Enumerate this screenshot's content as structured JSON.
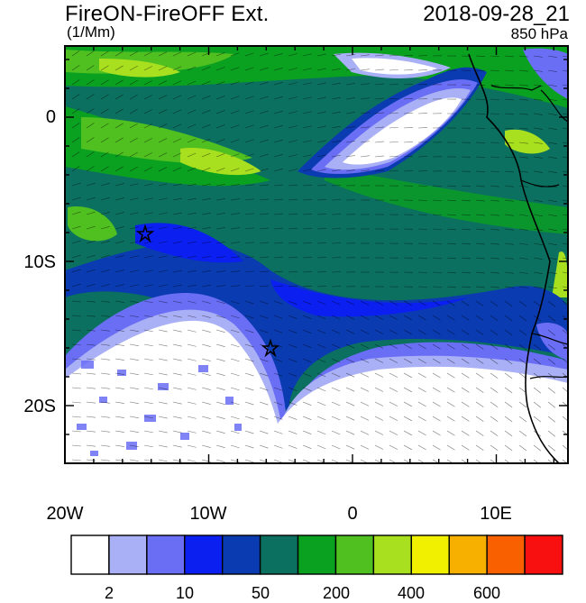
{
  "title": "FireON-FireOFF Ext.",
  "datetime": "2018-09-28_21",
  "units": "(1/Mm)",
  "level": "850 hPa",
  "y_axis_labels": [
    "0",
    "10S",
    "20S"
  ],
  "x_axis_labels": [
    "20W",
    "10W",
    "0",
    "10E"
  ],
  "colorbar": {
    "labels": [
      "2",
      "10",
      "50",
      "200",
      "400",
      "600"
    ],
    "colors": [
      "#ffffff",
      "#aab0f5",
      "#6a6ef5",
      "#0a1ff0",
      "#0a3bb0",
      "#0b7060",
      "#0aa020",
      "#50c020",
      "#a8e020",
      "#f0f000",
      "#f8b000",
      "#f86000",
      "#f81010"
    ]
  },
  "markers": [
    {
      "name": "star",
      "lon": -14.5,
      "lat": -8.0
    },
    {
      "name": "star",
      "lon": -5.7,
      "lat": -16.0
    }
  ]
}
